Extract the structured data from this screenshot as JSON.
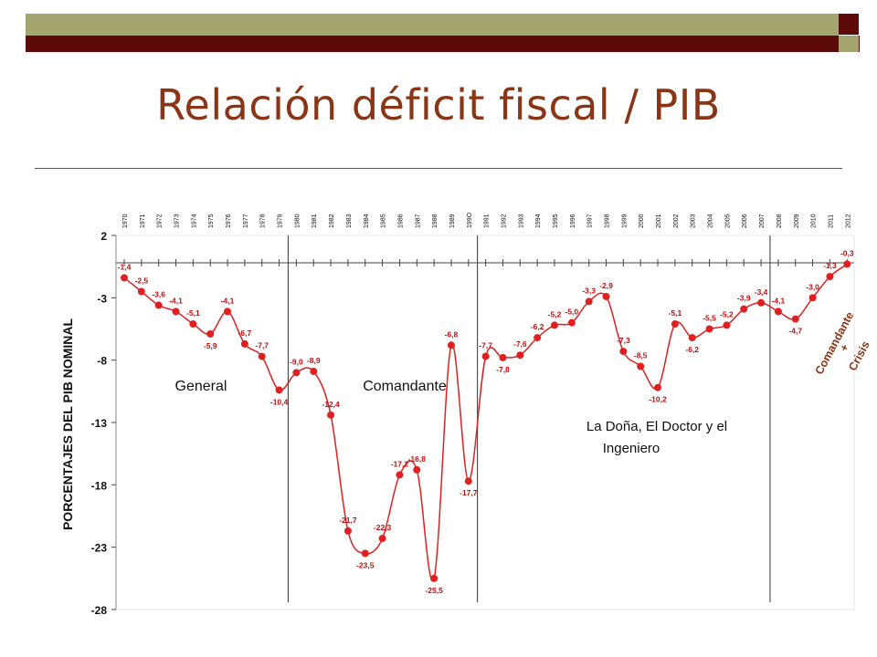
{
  "title": "Relación déficit fiscal / PIB",
  "chart_data": {
    "type": "line",
    "ylabel": "PORCENTAJES DEL PIB NOMINAL",
    "ylim": [
      -28,
      2
    ],
    "yticks": [
      "2",
      "-3",
      "-8",
      "-13",
      "-18",
      "-23",
      "-28"
    ],
    "x": [
      "1970",
      "1971",
      "1972",
      "1973",
      "1974",
      "1975",
      "1976",
      "1977",
      "1978",
      "1979",
      "1980",
      "1981",
      "1982",
      "1983",
      "1984",
      "1985",
      "1986",
      "1987",
      "1988",
      "1989",
      "199O",
      "1991",
      "1992",
      "1993",
      "1994",
      "1995",
      "1996",
      "1997",
      "1998",
      "1999",
      "2000",
      "2001",
      "2002",
      "2003",
      "2004",
      "2005",
      "2006",
      "2007",
      "2008",
      "2009",
      "2010",
      "2011",
      "2012"
    ],
    "values": [
      -1.4,
      -2.5,
      -3.6,
      -4.1,
      -5.1,
      -5.9,
      -4.1,
      -6.7,
      -7.7,
      -10.4,
      -9.0,
      -8.9,
      -12.4,
      -21.7,
      -23.5,
      -22.3,
      -17.2,
      -16.8,
      -25.5,
      -6.8,
      -17.7,
      -7.7,
      -7.8,
      -7.6,
      -6.2,
      -5.2,
      -5.0,
      -3.3,
      -2.9,
      -7.3,
      -8.5,
      -10.2,
      -5.1,
      -6.2,
      -5.5,
      -5.2,
      -3.9,
      -3.4,
      -4.1,
      -4.7,
      -3.0,
      -1.3,
      -0.3
    ],
    "labels": [
      "-1,4",
      "-2,5",
      "-3,6",
      "-4,1",
      "-5,1",
      "-5,9",
      "-4,1",
      "-6,7",
      "-7,7",
      "-10,4",
      "-9,0",
      "-8,9",
      "-12,4",
      "-21,7",
      "-23,5",
      "-22,3",
      "-17,2",
      "-16,8",
      "-25,5",
      "-6,8",
      "-17,7",
      "-7,7",
      "-7,8",
      "-7,6",
      "-6,2",
      "-5,2",
      "-5,0",
      "-3,3",
      "-2,9",
      "-7,3",
      "-8,5",
      "-10,2",
      "-5,1",
      "-6,2",
      "-5,5",
      "-5,2",
      "-3,9",
      "-3,4",
      "-4,1",
      "-4,7",
      "-3,0",
      "-1,3",
      "-0,3"
    ],
    "color": "#e02020",
    "period_dividers": [
      "1980",
      "1991",
      "2008"
    ],
    "annotations": [
      {
        "text": "General"
      },
      {
        "text": "Comandante"
      },
      {
        "text": "La Doña, El Doctor y el"
      },
      {
        "text": "Ingeniero"
      },
      {
        "text": "Comandante"
      },
      {
        "text": "+"
      },
      {
        "text": "Crisis"
      }
    ]
  }
}
